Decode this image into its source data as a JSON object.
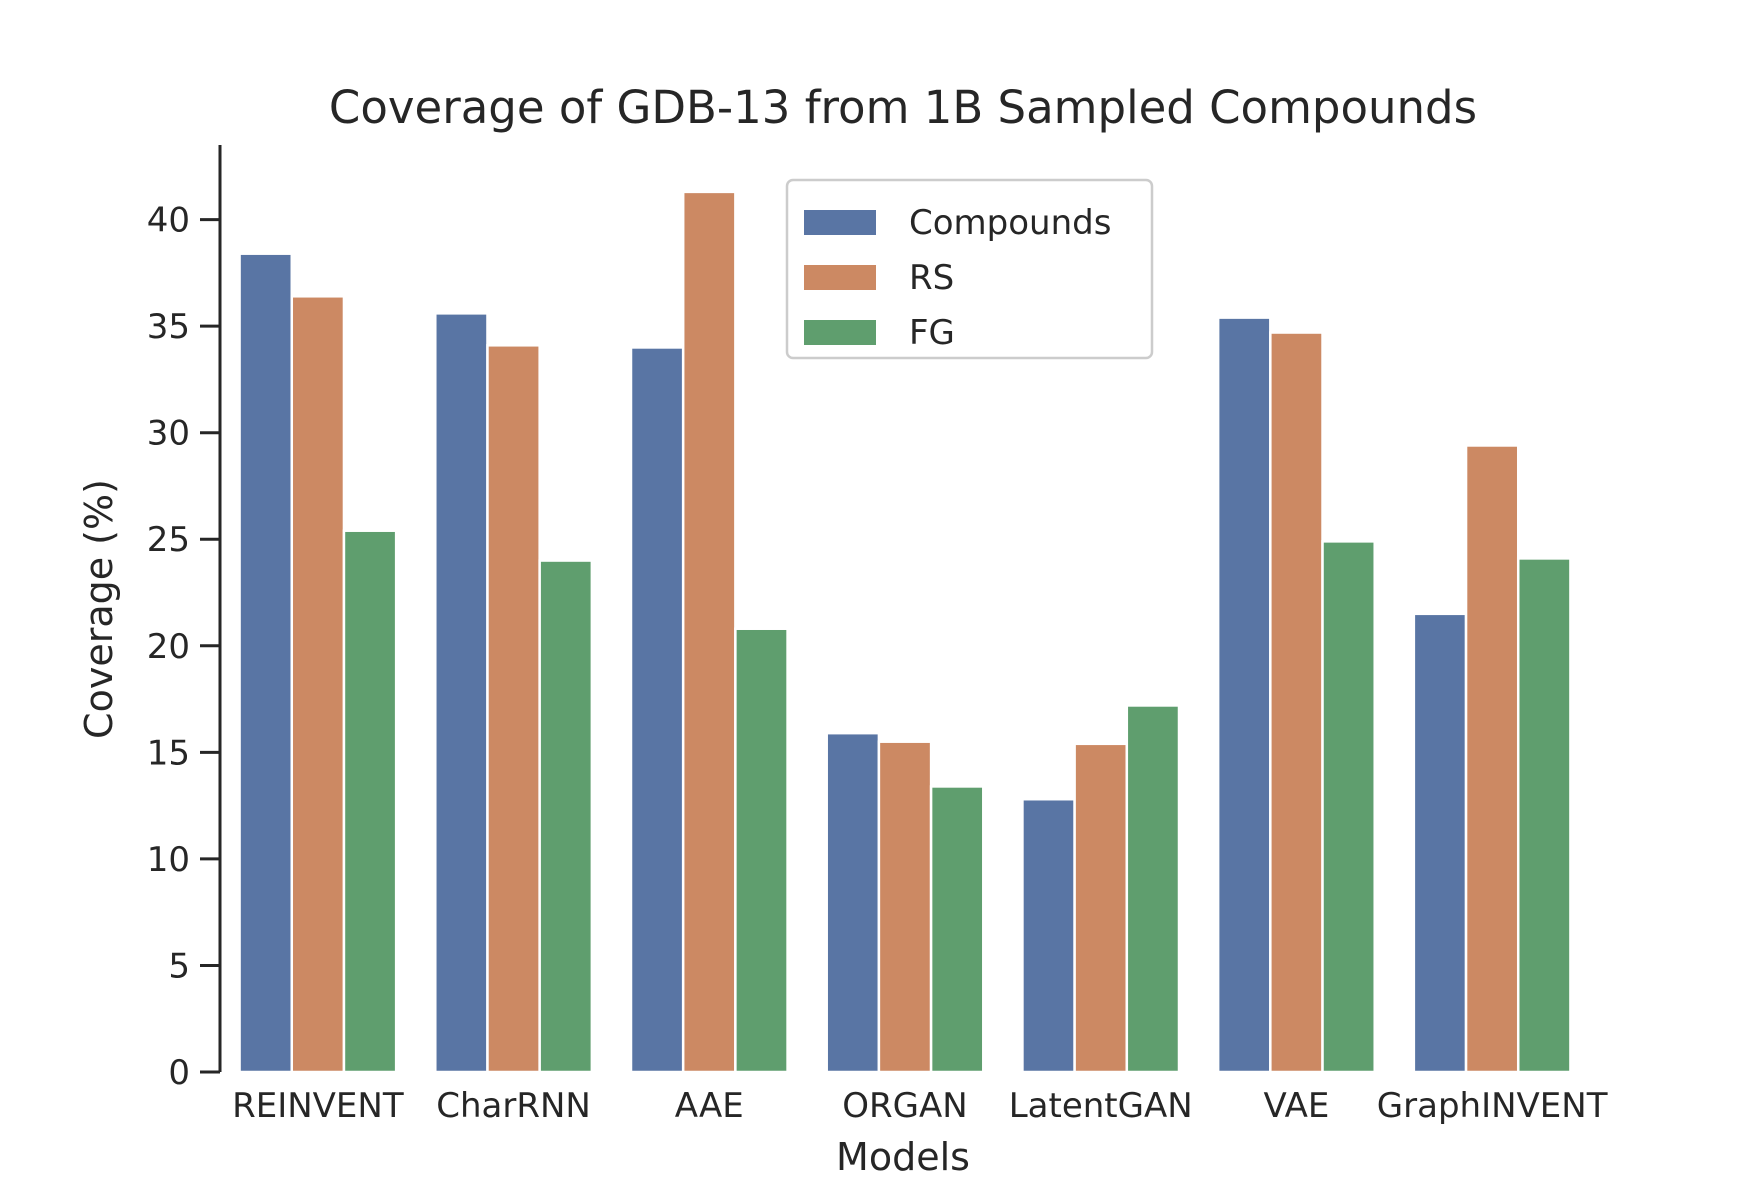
{
  "chart_data": {
    "type": "bar",
    "title": "Coverage of GDB-13 from 1B Sampled Compounds",
    "xlabel": "Models",
    "ylabel": "Coverage (%)",
    "ylim": [
      0,
      43.5
    ],
    "yticks": [
      0,
      5,
      10,
      15,
      20,
      25,
      30,
      35,
      40
    ],
    "grid": false,
    "legend_position": "top-center",
    "categories": [
      "REINVENT",
      "CharRNN",
      "AAE",
      "ORGAN",
      "LatentGAN",
      "VAE",
      "GraphINVENT"
    ],
    "series": [
      {
        "name": "Compounds",
        "color": "#5975a4",
        "values": [
          38.4,
          35.6,
          34.0,
          15.9,
          12.8,
          35.4,
          21.5
        ]
      },
      {
        "name": "RS",
        "color": "#cc8963",
        "values": [
          36.4,
          34.1,
          41.3,
          15.5,
          15.4,
          34.7,
          29.4
        ]
      },
      {
        "name": "FG",
        "color": "#5f9e6e",
        "values": [
          25.4,
          24.0,
          20.8,
          13.4,
          17.2,
          24.9,
          24.1
        ]
      }
    ]
  }
}
